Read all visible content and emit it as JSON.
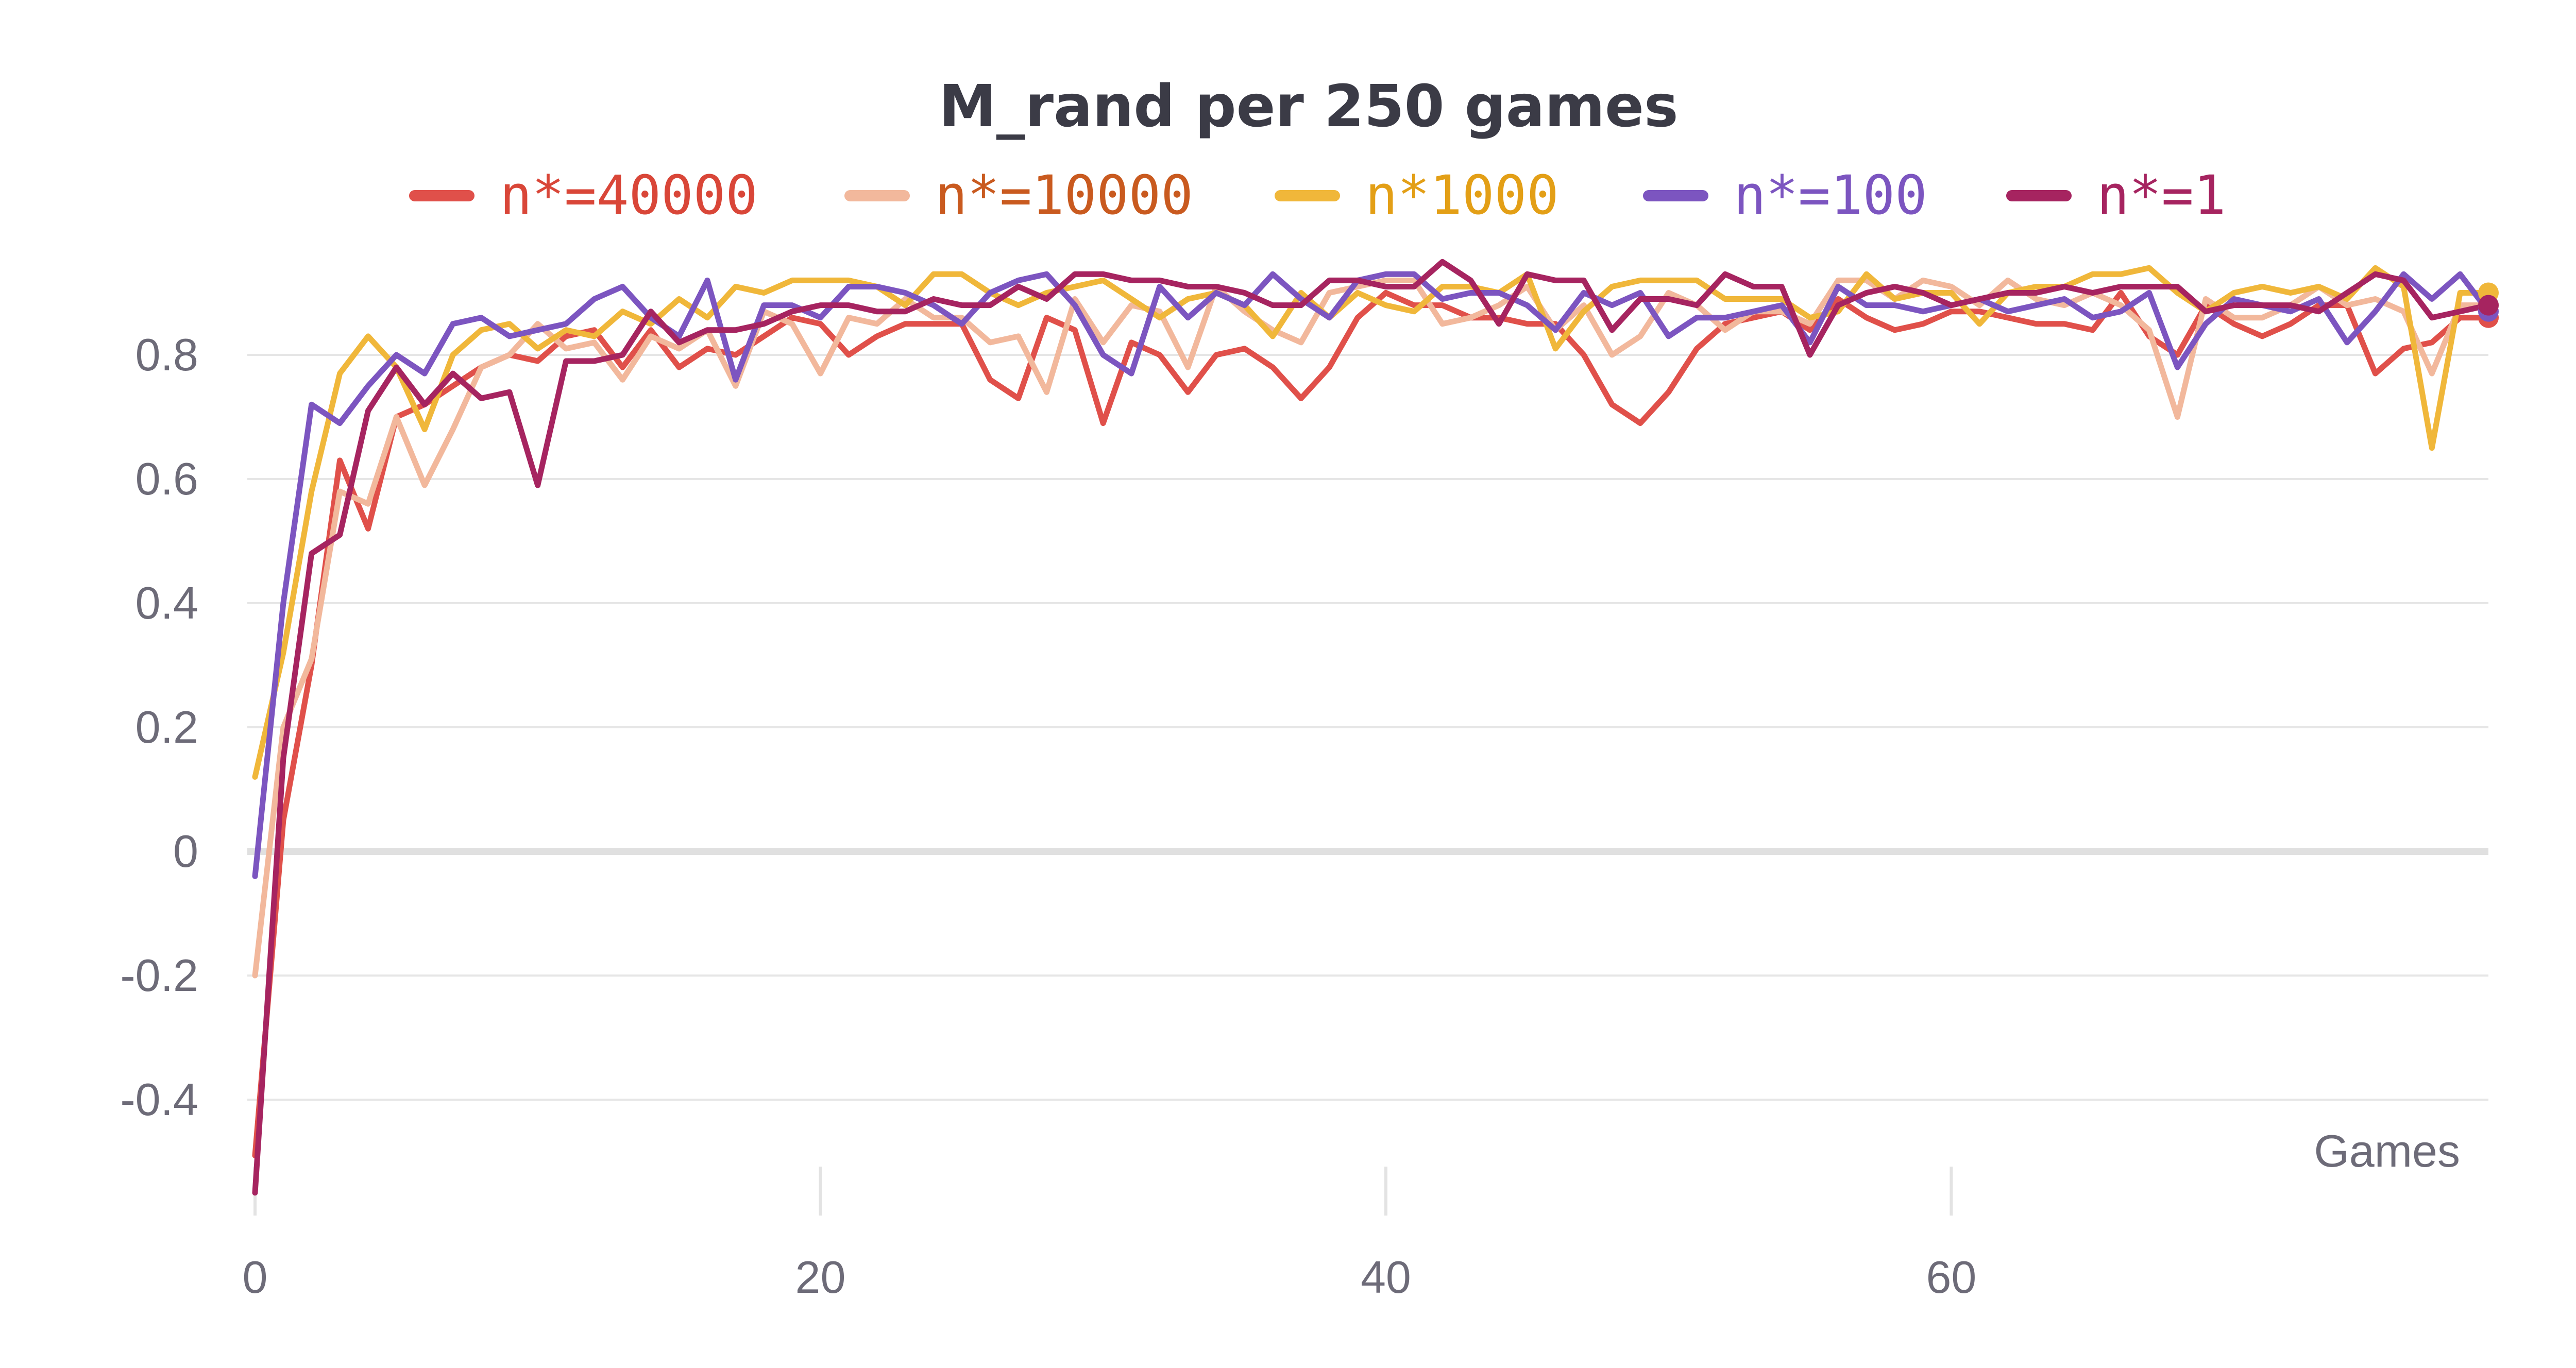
{
  "colors": {
    "series": [
      "#e0504a",
      "#f2b89c",
      "#f0b73a",
      "#7c55c0",
      "#a62460"
    ],
    "legend_text": [
      "#d94638",
      "#c95a1f",
      "#e39f16",
      "#7c55c0",
      "#a62460"
    ],
    "grid": "#e6e6e6",
    "zero_line": "#e0e0e0",
    "ticks": "#6d6b78",
    "title": "#3b3b46"
  },
  "chart_data": {
    "type": "line",
    "title": "M_rand per 250 games",
    "xlabel": "Games",
    "ylabel": "",
    "xlim": [
      0,
      79
    ],
    "ylim": [
      -0.55,
      0.98
    ],
    "grid": "horizontal",
    "legend_position": "top",
    "x_ticks": [
      "0",
      "20",
      "40",
      "60"
    ],
    "y_ticks": [
      "0.8",
      "0.6",
      "0.4",
      "0.2",
      "0",
      "-0.2",
      "-0.4"
    ],
    "x": [
      0,
      1,
      2,
      3,
      4,
      5,
      6,
      7,
      8,
      9,
      10,
      11,
      12,
      13,
      14,
      15,
      16,
      17,
      18,
      19,
      20,
      21,
      22,
      23,
      24,
      25,
      26,
      27,
      28,
      29,
      30,
      31,
      32,
      33,
      34,
      35,
      36,
      37,
      38,
      39,
      40,
      41,
      42,
      43,
      44,
      45,
      46,
      47,
      48,
      49,
      50,
      51,
      52,
      53,
      54,
      55,
      56,
      57,
      58,
      59,
      60,
      61,
      62,
      63,
      64,
      65,
      66,
      67,
      68,
      69,
      70,
      71,
      72,
      73,
      74,
      75,
      76,
      77,
      78,
      79
    ],
    "series": [
      {
        "name": "n*=40000",
        "values": [
          -0.49,
          0.05,
          0.3,
          0.63,
          0.52,
          0.7,
          0.72,
          0.75,
          0.78,
          0.8,
          0.79,
          0.83,
          0.84,
          0.78,
          0.84,
          0.78,
          0.81,
          0.8,
          0.83,
          0.86,
          0.85,
          0.8,
          0.83,
          0.85,
          0.85,
          0.85,
          0.76,
          0.73,
          0.86,
          0.84,
          0.69,
          0.82,
          0.8,
          0.74,
          0.8,
          0.81,
          0.78,
          0.73,
          0.78,
          0.86,
          0.9,
          0.88,
          0.88,
          0.86,
          0.86,
          0.85,
          0.85,
          0.8,
          0.72,
          0.69,
          0.74,
          0.81,
          0.85,
          0.86,
          0.87,
          0.84,
          0.89,
          0.86,
          0.84,
          0.85,
          0.87,
          0.87,
          0.86,
          0.85,
          0.85,
          0.84,
          0.9,
          0.83,
          0.8,
          0.88,
          0.85,
          0.83,
          0.85,
          0.88,
          0.88,
          0.77,
          0.81,
          0.82,
          0.86,
          0.86
        ]
      },
      {
        "name": "n*=10000",
        "values": [
          -0.2,
          0.2,
          0.31,
          0.58,
          0.56,
          0.7,
          0.59,
          0.68,
          0.78,
          0.8,
          0.85,
          0.81,
          0.82,
          0.76,
          0.83,
          0.81,
          0.84,
          0.75,
          0.87,
          0.85,
          0.77,
          0.86,
          0.85,
          0.89,
          0.86,
          0.86,
          0.82,
          0.83,
          0.74,
          0.89,
          0.82,
          0.88,
          0.87,
          0.78,
          0.91,
          0.87,
          0.84,
          0.82,
          0.9,
          0.91,
          0.92,
          0.92,
          0.85,
          0.86,
          0.88,
          0.91,
          0.84,
          0.88,
          0.8,
          0.83,
          0.9,
          0.88,
          0.84,
          0.87,
          0.87,
          0.85,
          0.92,
          0.92,
          0.89,
          0.92,
          0.91,
          0.88,
          0.92,
          0.89,
          0.88,
          0.9,
          0.88,
          0.84,
          0.7,
          0.89,
          0.86,
          0.86,
          0.88,
          0.91,
          0.88,
          0.89,
          0.87,
          0.77,
          0.88,
          0.88
        ]
      },
      {
        "name": "n*1000",
        "values": [
          0.12,
          0.32,
          0.58,
          0.77,
          0.83,
          0.78,
          0.68,
          0.8,
          0.84,
          0.85,
          0.81,
          0.84,
          0.83,
          0.87,
          0.85,
          0.89,
          0.86,
          0.91,
          0.9,
          0.92,
          0.92,
          0.92,
          0.91,
          0.88,
          0.93,
          0.93,
          0.9,
          0.88,
          0.9,
          0.91,
          0.92,
          0.89,
          0.86,
          0.89,
          0.9,
          0.88,
          0.83,
          0.9,
          0.86,
          0.9,
          0.88,
          0.87,
          0.91,
          0.91,
          0.9,
          0.93,
          0.81,
          0.87,
          0.91,
          0.92,
          0.92,
          0.92,
          0.89,
          0.89,
          0.89,
          0.86,
          0.87,
          0.93,
          0.89,
          0.9,
          0.9,
          0.85,
          0.9,
          0.91,
          0.91,
          0.93,
          0.93,
          0.94,
          0.9,
          0.87,
          0.9,
          0.91,
          0.9,
          0.91,
          0.89,
          0.94,
          0.91,
          0.65,
          0.9,
          0.9
        ]
      },
      {
        "name": "n*=100",
        "values": [
          -0.04,
          0.4,
          0.72,
          0.69,
          0.75,
          0.8,
          0.77,
          0.85,
          0.86,
          0.83,
          0.84,
          0.85,
          0.89,
          0.91,
          0.86,
          0.83,
          0.92,
          0.76,
          0.88,
          0.88,
          0.86,
          0.91,
          0.91,
          0.9,
          0.88,
          0.85,
          0.9,
          0.92,
          0.93,
          0.88,
          0.8,
          0.77,
          0.91,
          0.86,
          0.9,
          0.88,
          0.93,
          0.89,
          0.86,
          0.92,
          0.93,
          0.93,
          0.89,
          0.9,
          0.9,
          0.88,
          0.84,
          0.9,
          0.88,
          0.9,
          0.83,
          0.86,
          0.86,
          0.87,
          0.88,
          0.82,
          0.91,
          0.88,
          0.88,
          0.87,
          0.88,
          0.89,
          0.87,
          0.88,
          0.89,
          0.86,
          0.87,
          0.9,
          0.78,
          0.85,
          0.89,
          0.88,
          0.87,
          0.89,
          0.82,
          0.87,
          0.93,
          0.89,
          0.93,
          0.87
        ]
      },
      {
        "name": "n*=1",
        "values": [
          -0.55,
          0.15,
          0.48,
          0.51,
          0.71,
          0.78,
          0.72,
          0.77,
          0.73,
          0.74,
          0.59,
          0.79,
          0.79,
          0.8,
          0.87,
          0.82,
          0.84,
          0.84,
          0.85,
          0.87,
          0.88,
          0.88,
          0.87,
          0.87,
          0.89,
          0.88,
          0.88,
          0.91,
          0.89,
          0.93,
          0.93,
          0.92,
          0.92,
          0.91,
          0.91,
          0.9,
          0.88,
          0.88,
          0.92,
          0.92,
          0.91,
          0.91,
          0.95,
          0.92,
          0.85,
          0.93,
          0.92,
          0.92,
          0.84,
          0.89,
          0.89,
          0.88,
          0.93,
          0.91,
          0.91,
          0.8,
          0.88,
          0.9,
          0.91,
          0.9,
          0.88,
          0.89,
          0.9,
          0.9,
          0.91,
          0.9,
          0.91,
          0.91,
          0.91,
          0.87,
          0.88,
          0.88,
          0.88,
          0.87,
          0.9,
          0.93,
          0.92,
          0.86,
          0.87,
          0.88
        ]
      }
    ]
  }
}
